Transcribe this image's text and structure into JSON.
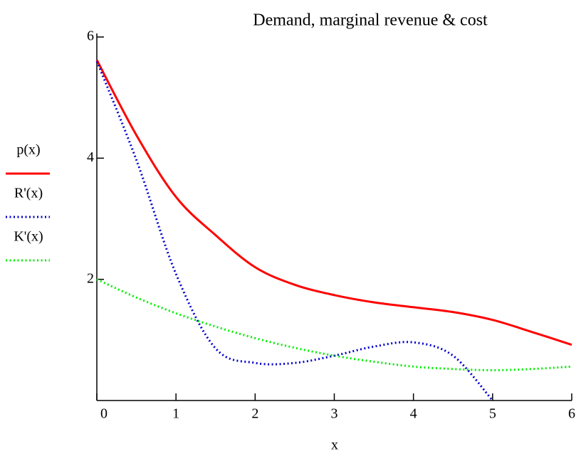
{
  "chart_data": {
    "type": "line",
    "title": "Demand, marginal revenue & cost",
    "xlabel": "x",
    "x": [
      0,
      0.5,
      1,
      1.5,
      2,
      2.5,
      3,
      3.5,
      4,
      4.5,
      5,
      5.5,
      6
    ],
    "series": [
      {
        "name": "p(x)",
        "color": "#ff0000",
        "style": "solid",
        "values": [
          5.62,
          4.38,
          3.36,
          2.73,
          2.2,
          1.91,
          1.74,
          1.62,
          1.54,
          1.46,
          1.33,
          1.13,
          0.92
        ]
      },
      {
        "name": "R'(x)",
        "color": "#0000cc",
        "style": "dotted",
        "values": [
          5.6,
          3.97,
          2.09,
          0.86,
          0.62,
          0.62,
          0.74,
          0.89,
          0.96,
          0.74,
          0,
          null,
          null
        ]
      },
      {
        "name": "K'(x)",
        "color": "#00ee00",
        "style": "dotted",
        "values": [
          2.0,
          1.7,
          1.44,
          1.22,
          1.03,
          0.87,
          0.74,
          0.64,
          0.56,
          0.52,
          0.5,
          0.52,
          0.56
        ]
      }
    ],
    "xlim": [
      0,
      6
    ],
    "xticks": [
      0,
      1,
      2,
      3,
      4,
      5,
      6
    ],
    "ylim": [
      0,
      6
    ],
    "yticks": [
      2,
      4,
      6
    ],
    "legend": "left"
  }
}
